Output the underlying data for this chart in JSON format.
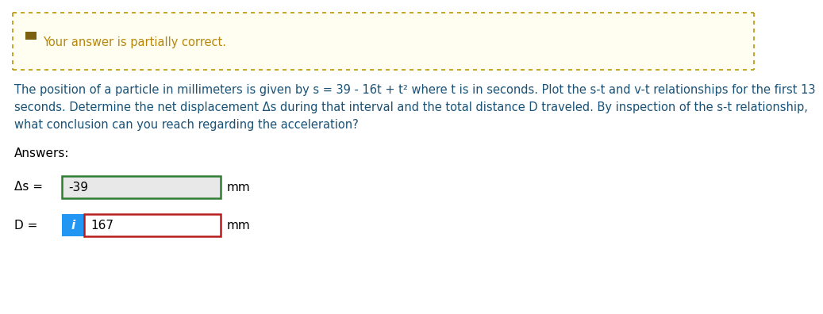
{
  "background_color": "#ffffff",
  "banner_bg": "#fffef0",
  "banner_border_color": "#b8960c",
  "banner_text": "Your answer is partially correct.",
  "banner_text_color": "#b8860b",
  "banner_icon_color": "#7a6010",
  "problem_line1": "The position of a particle in millimeters is given by s = 39 - 16t + t² where t is in seconds. Plot the s-t and v-t relationships for the first 13",
  "problem_line2": "seconds. Determine the net displacement Δs during that interval and the total distance D traveled. By inspection of the s-t relationship,",
  "problem_line3": "what conclusion can you reach regarding the acceleration?",
  "problem_color": "#1a5276",
  "answers_label": "Answers:",
  "delta_s_label": "Δs =",
  "delta_s_value": "-39",
  "delta_s_unit": "mm",
  "delta_s_box_bg": "#e8e8e8",
  "delta_s_box_border": "#2e7d32",
  "D_label": "D =",
  "D_value": "167",
  "D_unit": "mm",
  "D_icon_text": "i",
  "D_icon_bg": "#2196f3",
  "D_icon_text_color": "#ffffff",
  "D_box_bg": "#ffffff",
  "D_box_border": "#b71c1c",
  "label_color": "#000000",
  "font_size_banner": 10.5,
  "font_size_problem": 10.5,
  "font_size_answers": 11,
  "font_size_fields": 11
}
